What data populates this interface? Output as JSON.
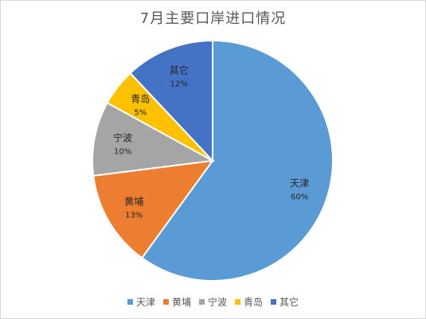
{
  "chart_data": {
    "type": "pie",
    "title": "7月主要口岸进口情况",
    "categories": [
      "天津",
      "黄埔",
      "宁波",
      "青岛",
      "其它"
    ],
    "values": [
      60,
      13,
      10,
      5,
      12
    ],
    "labels": [
      "60%",
      "13%",
      "10%",
      "5%",
      "12%"
    ],
    "colors": [
      "#5b9bd5",
      "#ed7d31",
      "#a5a5a5",
      "#ffc000",
      "#4472c4"
    ],
    "legend_position": "bottom"
  }
}
